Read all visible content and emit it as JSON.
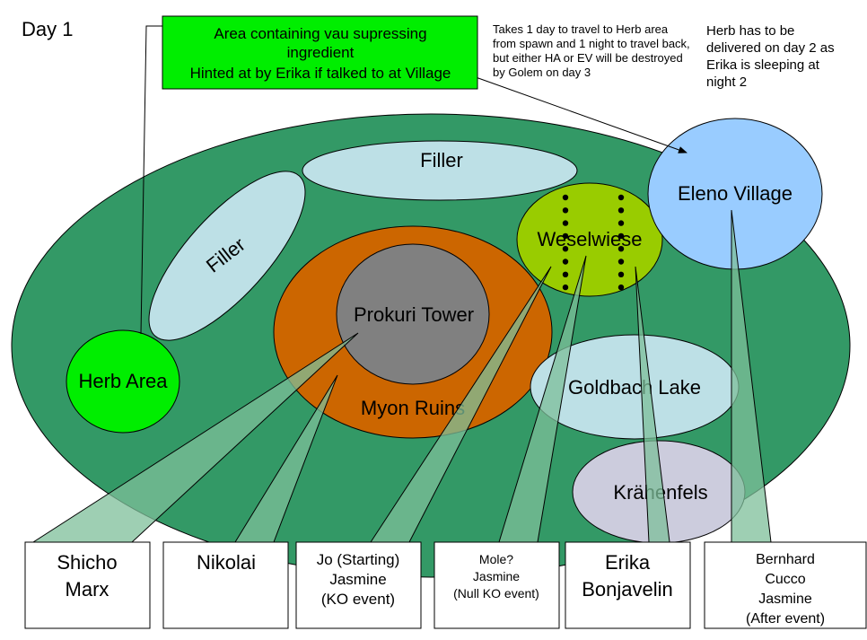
{
  "title": "Day 1",
  "header_box": {
    "lines": [
      "Area containing vau supressing",
      "ingredient",
      "Hinted at by Erika if talked to at Village"
    ]
  },
  "notes": {
    "travel": [
      "Takes 1 day to travel to Herb area",
      "from spawn and 1 night to travel back,",
      "but either HA or EV will be destroyed",
      "by Golem on day 3"
    ],
    "delivery": [
      "Herb has to be",
      "delivered on day 2 as",
      "Erika is sleeping at",
      "night 2"
    ]
  },
  "regions": {
    "filler_top": "Filler",
    "filler_left": "Filler",
    "myon_ruins": "Myon Ruins",
    "prokuri_tower": "Prokuri Tower",
    "weselwiese": "Weselwiese",
    "eleno_village": "Eleno Village",
    "herb_area": "Herb Area",
    "goldbach_lake": "Goldbach Lake",
    "krahenfels": "Krähenfels"
  },
  "characters": [
    {
      "lines": [
        "Shicho",
        "Marx"
      ]
    },
    {
      "lines": [
        "Nikolai"
      ]
    },
    {
      "lines": [
        "Jo (Starting)",
        "Jasmine",
        "(KO event)"
      ]
    },
    {
      "lines": [
        "Mole?",
        "Jasmine",
        "(Null KO event)"
      ]
    },
    {
      "lines": [
        "Erika",
        "Bonjavelin"
      ]
    },
    {
      "lines": [
        "Bernhard",
        "Cucco",
        "Jasmine",
        "(After event)"
      ]
    }
  ],
  "colors": {
    "land": "#339966",
    "filler": "#bde0e6",
    "myon": "#cc6600",
    "tower": "#808080",
    "weselwiese": "#99cc00",
    "village": "#99ccff",
    "herb": "#00ee00",
    "lake": "#bde0e6",
    "krahenfels": "#ccccdd",
    "callout": "#7dbf99",
    "header_box": "#00ee00"
  }
}
